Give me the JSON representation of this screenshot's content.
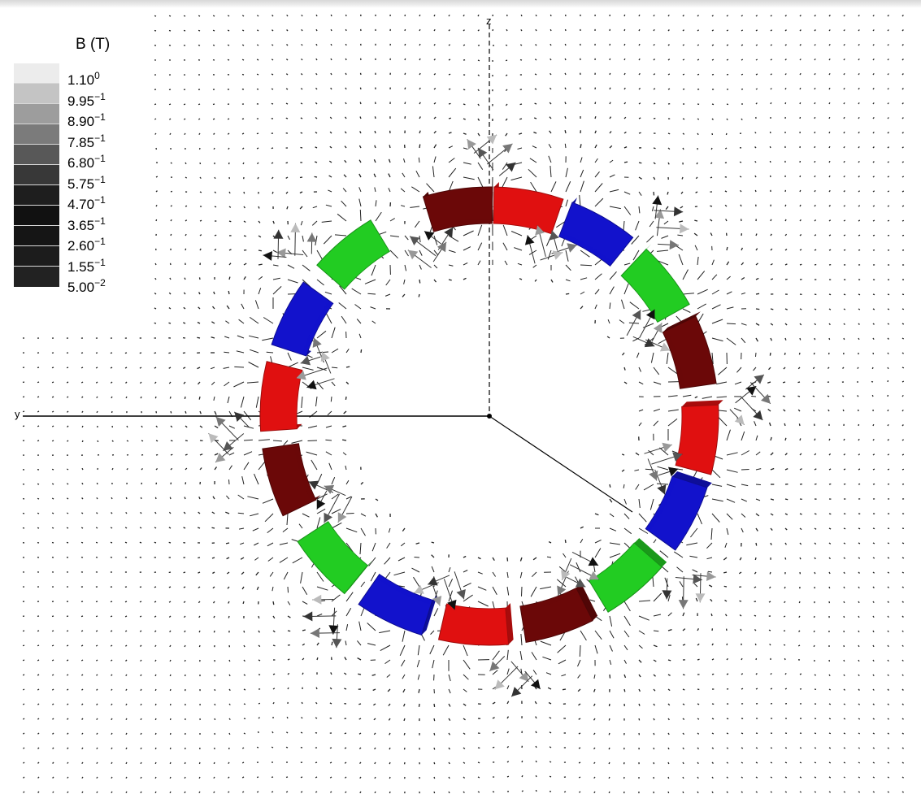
{
  "legend": {
    "title": "B (T)",
    "entries": [
      {
        "mantissa": "1.10",
        "exponent": "0",
        "color": "#ececec"
      },
      {
        "mantissa": "9.95",
        "exponent": "−1",
        "color": "#c4c4c4"
      },
      {
        "mantissa": "8.90",
        "exponent": "−1",
        "color": "#9d9d9d"
      },
      {
        "mantissa": "7.85",
        "exponent": "−1",
        "color": "#7b7b7b"
      },
      {
        "mantissa": "6.80",
        "exponent": "−1",
        "color": "#585858"
      },
      {
        "mantissa": "5.75",
        "exponent": "−1",
        "color": "#383838"
      },
      {
        "mantissa": "4.70",
        "exponent": "−1",
        "color": "#1e1e1e"
      },
      {
        "mantissa": "3.65",
        "exponent": "−1",
        "color": "#111111"
      },
      {
        "mantissa": "2.60",
        "exponent": "−1",
        "color": "#151515"
      },
      {
        "mantissa": "1.55",
        "exponent": "−1",
        "color": "#1c1c1c"
      },
      {
        "mantissa": "5.00",
        "exponent": "−2",
        "color": "#222222"
      }
    ]
  },
  "axes": {
    "vertical_label": "z",
    "horizontal_label": "y"
  },
  "magnet_colors": {
    "dark_red": "#6b0808",
    "red": "#e01010",
    "blue": "#1212cc",
    "green": "#22cc22"
  },
  "magnets": [
    {
      "angle_deg": 98,
      "color": "dark_red"
    },
    {
      "angle_deg": 80,
      "color": "red"
    },
    {
      "angle_deg": 60,
      "color": "blue"
    },
    {
      "angle_deg": 38,
      "color": "green"
    },
    {
      "angle_deg": 17,
      "color": "dark_red"
    },
    {
      "angle_deg": -6,
      "color": "red"
    },
    {
      "angle_deg": -27,
      "color": "blue"
    },
    {
      "angle_deg": -50,
      "color": "green"
    },
    {
      "angle_deg": -72,
      "color": "dark_red"
    },
    {
      "angle_deg": -94,
      "color": "red"
    },
    {
      "angle_deg": -116,
      "color": "blue"
    },
    {
      "angle_deg": -138,
      "color": "green"
    },
    {
      "angle_deg": -163,
      "color": "dark_red"
    },
    {
      "angle_deg": 175,
      "color": "red"
    },
    {
      "angle_deg": 153,
      "color": "blue"
    },
    {
      "angle_deg": 130,
      "color": "green"
    }
  ]
}
